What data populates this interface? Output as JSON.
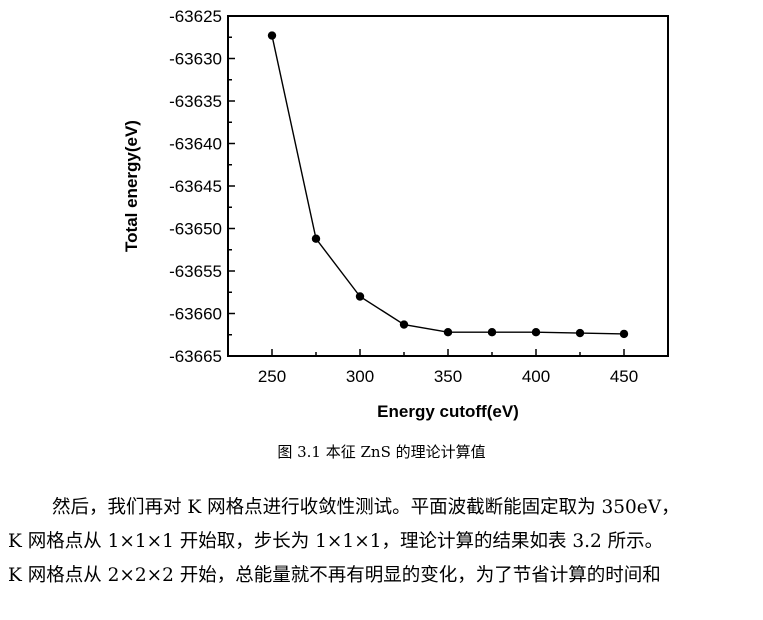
{
  "chart_data": {
    "type": "line",
    "xlabel": "Energy cutoff(eV)",
    "ylabel": "Total energy(eV)",
    "xlim": [
      225,
      475
    ],
    "ylim": [
      -63665,
      -63625
    ],
    "x_ticks": [
      250,
      300,
      350,
      400,
      450
    ],
    "y_ticks": [
      -63625,
      -63630,
      -63635,
      -63640,
      -63645,
      -63650,
      -63655,
      -63660,
      -63665
    ],
    "series": [
      {
        "x": [
          250,
          275,
          300,
          325,
          350,
          375,
          400,
          425,
          450
        ],
        "y": [
          -63627.3,
          -63651.2,
          -63658.0,
          -63661.3,
          -63662.2,
          -63662.2,
          -63662.2,
          -63662.3,
          -63662.4
        ],
        "marker": "circle",
        "color": "#000000"
      }
    ],
    "grid": false
  },
  "caption": "图 3.1 本征 ZnS 的理论计算值",
  "body_text": {
    "line1": "然后，我们再对 K 网格点进行收敛性测试。平面波截断能固定取为 350eV，",
    "line2": "K 网格点从 1×1×1 开始取，步长为 1×1×1，理论计算的结果如表 3.2 所示。",
    "line3": "K 网格点从 2×2×2 开始，总能量就不再有明显的变化，为了节省计算的时间和"
  }
}
